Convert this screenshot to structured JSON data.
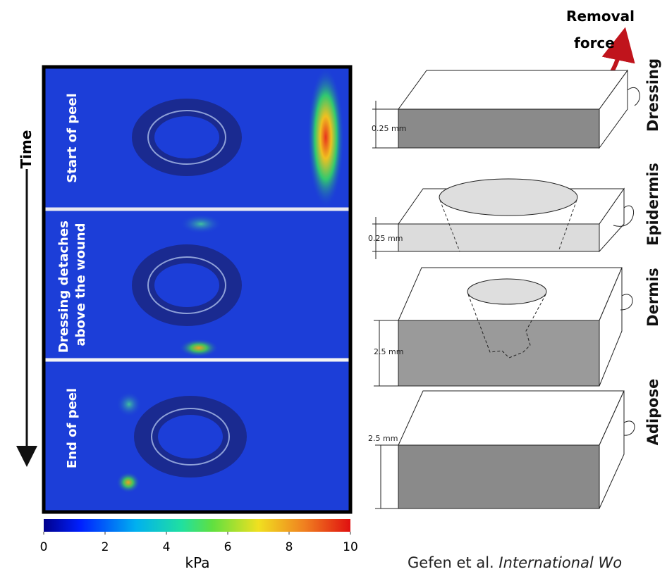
{
  "removal_force": [
    "Removal",
    "force"
  ],
  "time_label": "Time",
  "panels": [
    {
      "label": [
        "Start of peel"
      ]
    },
    {
      "label": [
        "Dressing detaches",
        "above the wound"
      ]
    },
    {
      "label": [
        "End of peel"
      ]
    }
  ],
  "colorbar": {
    "ticks": [
      0,
      2,
      4,
      6,
      8,
      10
    ],
    "unit": "kPa"
  },
  "layers": [
    {
      "name": "Dressing",
      "thickness": "0.25 mm"
    },
    {
      "name": "Epidermis",
      "thickness": "0.25 mm"
    },
    {
      "name": "Dermis",
      "thickness": "2.5 mm"
    },
    {
      "name": "Adipose",
      "thickness": "2.5 mm"
    }
  ],
  "citation": {
    "authors": "Gefen et al. ",
    "journal": "International Wo"
  }
}
